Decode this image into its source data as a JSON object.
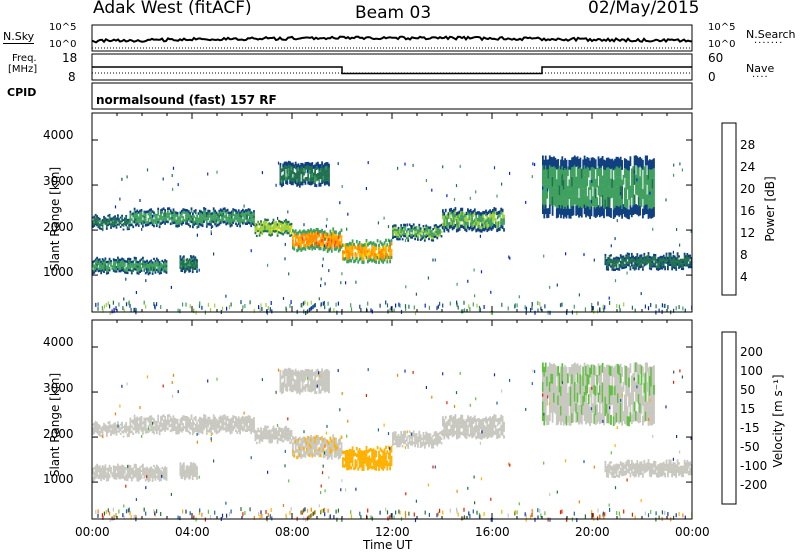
{
  "header": {
    "station": "Adak West (fitACF)",
    "beam": "Beam 03",
    "date": "02/May/2015"
  },
  "noise_panel": {
    "left_label": "N.Sky",
    "right_label": "N.Search",
    "left_ticks": [
      "10^5",
      "10^0"
    ],
    "right_ticks": [
      "10^5",
      "10^0"
    ]
  },
  "freq_panel": {
    "left_label_1": "Freq.",
    "left_label_2": "[MHz]",
    "right_label": "Nave",
    "left_ticks": [
      "18",
      "8"
    ],
    "right_ticks": [
      "60",
      "0"
    ]
  },
  "cpid": {
    "label": "CPID",
    "value": "normalsound (fast) 157 RF"
  },
  "axes": {
    "xlabel": "Time UT",
    "x_ticks": [
      "00:00",
      "04:00",
      "08:00",
      "12:00",
      "16:00",
      "20:00",
      "00:00"
    ],
    "ylabel": "Slant Range [km]",
    "y_ticks": [
      "4000",
      "3000",
      "2000",
      "1000"
    ]
  },
  "power_scale": {
    "title": "Power [dB]",
    "ticks": [
      "28",
      "24",
      "20",
      "16",
      "12",
      "8",
      "4"
    ],
    "colors": [
      "#e00000",
      "#ff4000",
      "#ff8c00",
      "#ffb000",
      "#f0e000",
      "#a0d040",
      "#40a060",
      "#207050",
      "#104080",
      "#0020e0"
    ]
  },
  "velocity_scale": {
    "title": "Velocity [m s⁻¹]",
    "ticks": [
      "200",
      "100",
      "50",
      "15",
      "-15",
      "-50",
      "-100",
      "-200"
    ],
    "colors": [
      "#1030a0",
      "#2060a0",
      "#207030",
      "#60c040",
      "#c8c8c0",
      "#ffb000",
      "#ff8000",
      "#e02000"
    ]
  },
  "chart_data": {
    "type": "heatmap",
    "title": "Adak West (fitACF) Beam 03 02/May/2015",
    "xlabel": "Time UT",
    "ylabel": "Slant Range [km]",
    "xlim": [
      0,
      24
    ],
    "ylim": [
      180,
      4600
    ],
    "x_ticks_hours": [
      0,
      4,
      8,
      12,
      16,
      20,
      24
    ],
    "y_ticks_km": [
      1000,
      2000,
      3000,
      4000
    ],
    "panels": [
      "Power [dB]",
      "Velocity [m s⁻¹]"
    ],
    "power_scale_range": [
      0,
      30
    ],
    "velocity_scale_range": [
      -250,
      250
    ],
    "freq_ylim_MHz": [
      8,
      18
    ],
    "freq_segments": [
      {
        "from_hour": 0,
        "to_hour": 10,
        "freq_MHz": 13
      },
      {
        "from_hour": 10,
        "to_hour": 18,
        "freq_MHz": 10.5
      },
      {
        "from_hour": 18,
        "to_hour": 24,
        "freq_MHz": 13
      }
    ],
    "backscatter_bands": [
      {
        "t0": 0.0,
        "t1": 1.5,
        "r0": 2050,
        "r1": 2300,
        "power": 8,
        "velocity": 0
      },
      {
        "t0": 1.5,
        "t1": 6.5,
        "r0": 2100,
        "r1": 2450,
        "power": 10,
        "velocity": 0
      },
      {
        "t0": 6.5,
        "t1": 8.0,
        "r0": 1900,
        "r1": 2200,
        "power": 14,
        "velocity": 5
      },
      {
        "t0": 8.0,
        "t1": 10.0,
        "r0": 1550,
        "r1": 2000,
        "power": 24,
        "velocity": -10
      },
      {
        "t0": 10.0,
        "t1": 12.0,
        "r0": 1300,
        "r1": 1750,
        "power": 22,
        "velocity": -40
      },
      {
        "t0": 12.0,
        "t1": 14.0,
        "r0": 1800,
        "r1": 2100,
        "power": 12,
        "velocity": 0
      },
      {
        "t0": 14.0,
        "t1": 16.5,
        "r0": 2000,
        "r1": 2450,
        "power": 12,
        "velocity": 0
      },
      {
        "t0": 0.0,
        "t1": 3.0,
        "r0": 1050,
        "r1": 1350,
        "power": 10,
        "velocity": 0
      },
      {
        "t0": 3.5,
        "t1": 4.2,
        "r0": 1100,
        "r1": 1400,
        "power": 8,
        "velocity": 0
      },
      {
        "t0": 20.5,
        "t1": 24.0,
        "r0": 1150,
        "r1": 1450,
        "power": 6,
        "velocity": 0
      },
      {
        "t0": 7.5,
        "t1": 9.5,
        "r0": 3000,
        "r1": 3500,
        "power": 8,
        "velocity": 0
      },
      {
        "t0": 18.0,
        "t1": 22.5,
        "r0": 2300,
        "r1": 3600,
        "power": 10,
        "velocity": 10
      }
    ]
  }
}
